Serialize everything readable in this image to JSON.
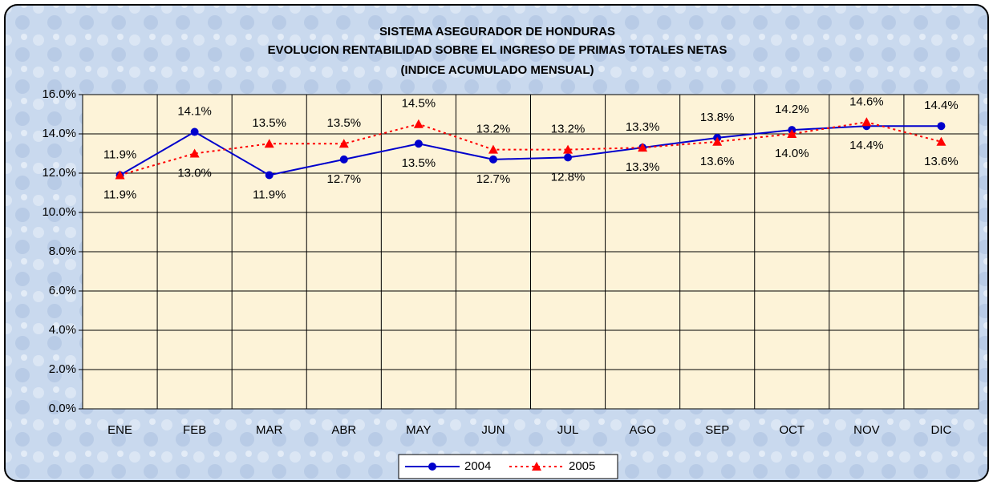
{
  "chart_data": {
    "type": "line",
    "title": [
      "SISTEMA ASEGURADOR DE HONDURAS",
      "EVOLUCION RENTABILIDAD SOBRE EL INGRESO DE PRIMAS TOTALES NETAS",
      "(INDICE ACUMULADO MENSUAL)"
    ],
    "categories": [
      "ENE",
      "FEB",
      "MAR",
      "ABR",
      "MAY",
      "JUN",
      "JUL",
      "AGO",
      "SEP",
      "OCT",
      "NOV",
      "DIC"
    ],
    "series": [
      {
        "name": "2004",
        "color": "#0000cc",
        "marker": "circle",
        "dash": "solid",
        "values": [
          11.9,
          14.1,
          11.9,
          12.7,
          13.5,
          12.7,
          12.8,
          13.3,
          13.8,
          14.2,
          14.4,
          14.4
        ],
        "value_labels": [
          "11.9%",
          "14.1%",
          "11.9%",
          "12.7%",
          "13.5%",
          "12.7%",
          "12.8%",
          "13.3%",
          "13.8%",
          "14.2%",
          "14.4%",
          "14.4%"
        ]
      },
      {
        "name": "2005",
        "color": "#ff0000",
        "marker": "triangle",
        "dash": "dotted",
        "values": [
          11.9,
          13.0,
          13.5,
          13.5,
          14.5,
          13.2,
          13.2,
          13.3,
          13.6,
          14.0,
          14.6,
          13.6
        ],
        "value_labels": [
          "11.9%",
          "13.0%",
          "13.5%",
          "13.5%",
          "14.5%",
          "13.2%",
          "13.2%",
          "13.3%",
          "13.6%",
          "14.0%",
          "14.6%",
          "13.6%"
        ]
      }
    ],
    "ylim": [
      0,
      16
    ],
    "yticks": [
      {
        "value": 0,
        "label": "0.0%"
      },
      {
        "value": 2,
        "label": "2.0%"
      },
      {
        "value": 4,
        "label": "4.0%"
      },
      {
        "value": 6,
        "label": "6.0%"
      },
      {
        "value": 8,
        "label": "8.0%"
      },
      {
        "value": 10,
        "label": "10.0%"
      },
      {
        "value": 12,
        "label": "12.0%"
      },
      {
        "value": 14,
        "label": "14.0%"
      },
      {
        "value": 16,
        "label": "16.0%"
      }
    ],
    "grid": true,
    "legend": "bottom"
  }
}
